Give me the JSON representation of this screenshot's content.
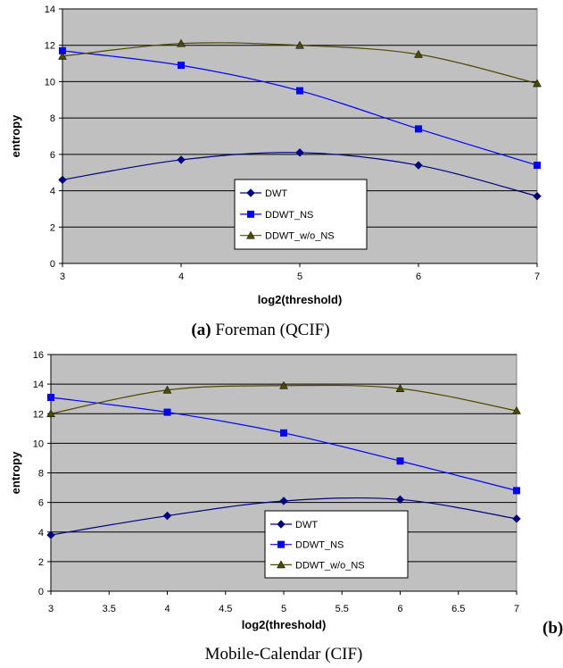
{
  "chart_data": [
    {
      "type": "line",
      "xlabel": "log2(threshold)",
      "ylabel": "entropy",
      "xlim": [
        3,
        7
      ],
      "ylim": [
        0,
        14
      ],
      "x_ticks": [
        "3",
        "4",
        "5",
        "6",
        "7"
      ],
      "y_ticks": [
        "0",
        "2",
        "4",
        "6",
        "8",
        "10",
        "12",
        "14"
      ],
      "x": [
        3,
        4,
        5,
        6,
        7
      ],
      "series": [
        {
          "name": "DWT",
          "values": [
            4.6,
            5.7,
            6.1,
            5.4,
            3.7
          ],
          "color": "#000080",
          "marker": "diamond"
        },
        {
          "name": "DDWT_NS",
          "values": [
            11.7,
            10.9,
            9.5,
            7.4,
            5.4
          ],
          "color": "#0000ff",
          "marker": "square"
        },
        {
          "name": "DDWT_w/o_NS",
          "values": [
            11.4,
            12.1,
            12.0,
            11.5,
            9.9
          ],
          "color": "#4b4b00",
          "marker": "triangle"
        }
      ],
      "grid": "horizontal",
      "plot_background": "#c0c0c0",
      "legend_position": "bottom-center",
      "caption_label": "(a)",
      "caption_text": " Foreman (QCIF)"
    },
    {
      "type": "line",
      "xlabel": "log2(threshold)",
      "ylabel": "entropy",
      "xlim": [
        3,
        7
      ],
      "ylim": [
        0,
        16
      ],
      "x_ticks": [
        "3",
        "3.5",
        "4",
        "4.5",
        "5",
        "5.5",
        "6",
        "6.5",
        "7"
      ],
      "y_ticks": [
        "0",
        "2",
        "4",
        "6",
        "8",
        "10",
        "12",
        "14",
        "16"
      ],
      "x": [
        3,
        4,
        5,
        6,
        7
      ],
      "series": [
        {
          "name": "DWT",
          "values": [
            3.8,
            5.1,
            6.1,
            6.2,
            4.9
          ],
          "color": "#000080",
          "marker": "diamond"
        },
        {
          "name": "DDWT_NS",
          "values": [
            13.1,
            12.1,
            10.7,
            8.8,
            6.8
          ],
          "color": "#0000ff",
          "marker": "square"
        },
        {
          "name": "DDWT_w/o_NS",
          "values": [
            12.0,
            13.6,
            13.9,
            13.7,
            12.2
          ],
          "color": "#4b4b00",
          "marker": "triangle"
        }
      ],
      "grid": "horizontal",
      "plot_background": "#c0c0c0",
      "legend_position": "bottom-center",
      "caption_label": "(b)",
      "caption_text": "Mobile-Calendar (CIF)"
    }
  ]
}
